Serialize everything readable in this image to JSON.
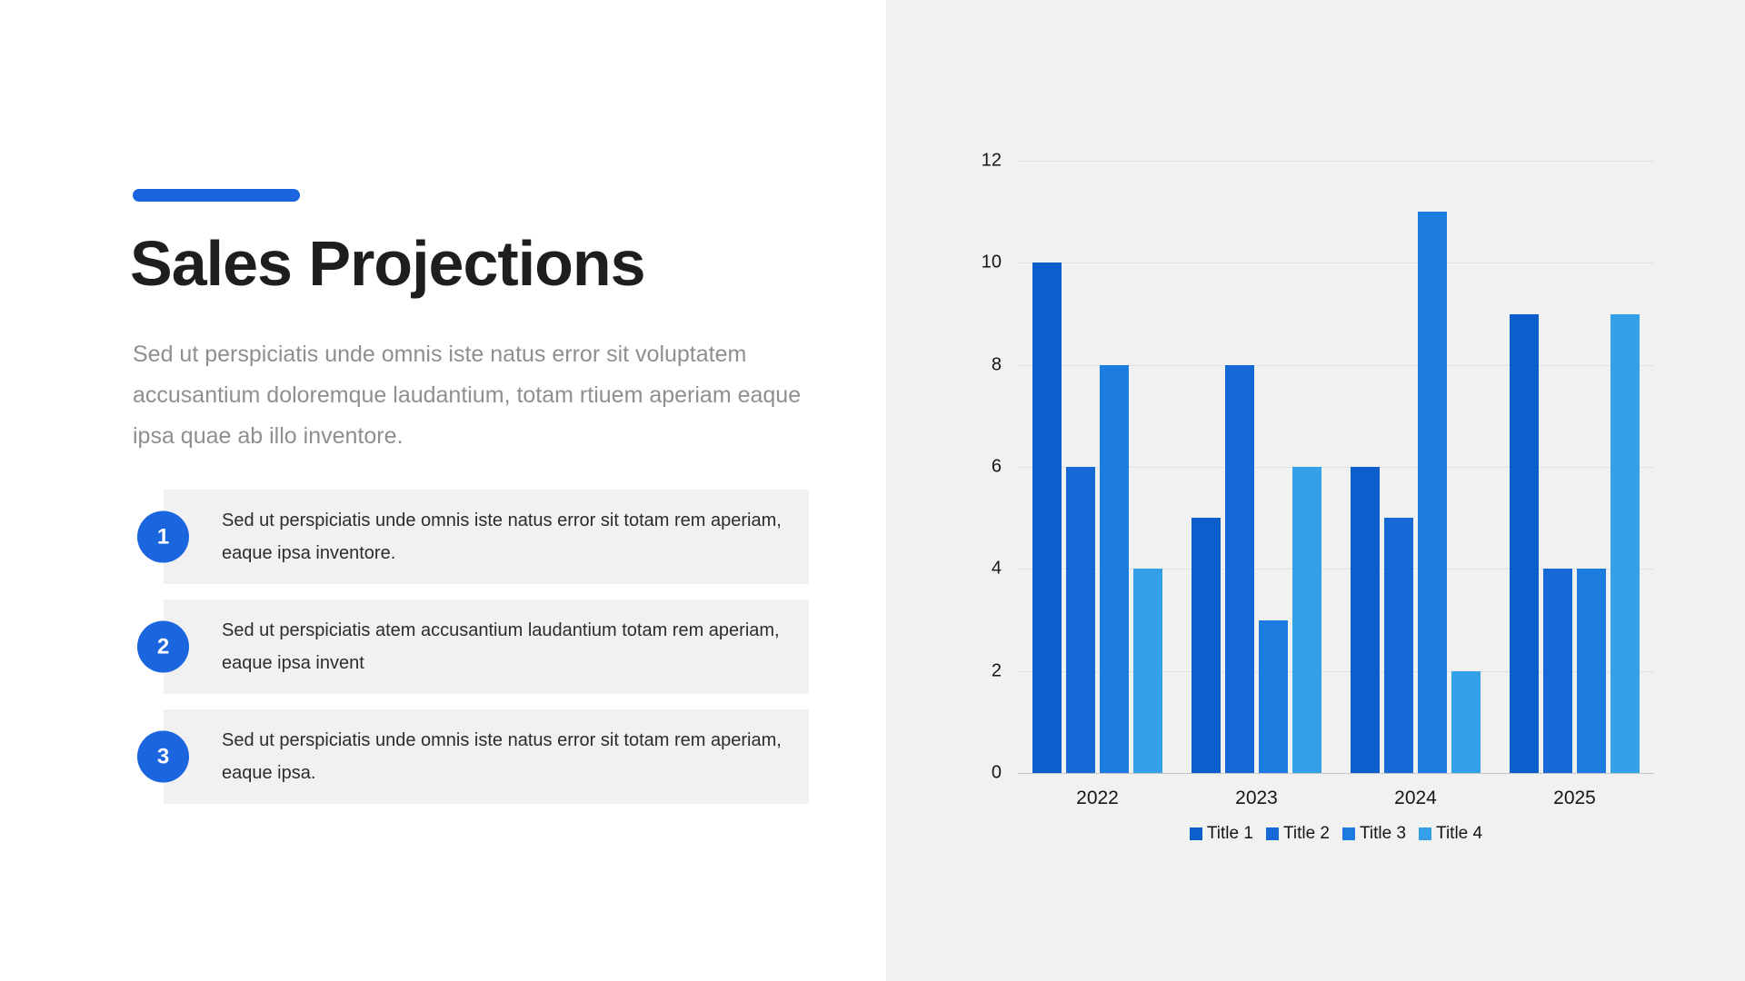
{
  "slide": {
    "title": "Sales Projections",
    "subtitle": "Sed ut perspiciatis unde omnis iste natus error sit voluptatem accusantium doloremque laudantium, totam rtiuem aperiam eaque ipsa quae ab illo inventore.",
    "items": [
      {
        "number": "1",
        "text": "Sed ut perspiciatis unde omnis iste natus error sit totam rem aperiam, eaque ipsa inventore."
      },
      {
        "number": "2",
        "text": "Sed ut perspiciatis atem accusantium laudantium totam rem aperiam, eaque ipsa invent"
      },
      {
        "number": "3",
        "text": "Sed ut perspiciatis unde omnis iste natus error sit totam rem aperiam, eaque ipsa."
      }
    ]
  },
  "colors": {
    "accent": "#1b66de",
    "panel_background": "#f1f1f2",
    "series": [
      "#0d5ecd",
      "#1569d6",
      "#1d7cdf",
      "#33a0e8"
    ]
  },
  "chart_data": {
    "type": "bar",
    "title": "",
    "categories": [
      "2022",
      "2023",
      "2024",
      "2025"
    ],
    "series": [
      {
        "name": "Title 1",
        "values": [
          10,
          5,
          6,
          9
        ]
      },
      {
        "name": "Title 2",
        "values": [
          6,
          8,
          5,
          4
        ]
      },
      {
        "name": "Title 3",
        "values": [
          8,
          3,
          11,
          4
        ]
      },
      {
        "name": "Title 4",
        "values": [
          4,
          6,
          2,
          9
        ]
      }
    ],
    "xlabel": "",
    "ylabel": "",
    "ylim": [
      0,
      12
    ],
    "yticks": [
      0,
      2,
      4,
      6,
      8,
      10,
      12
    ],
    "grid": true,
    "legend_position": "bottom"
  }
}
